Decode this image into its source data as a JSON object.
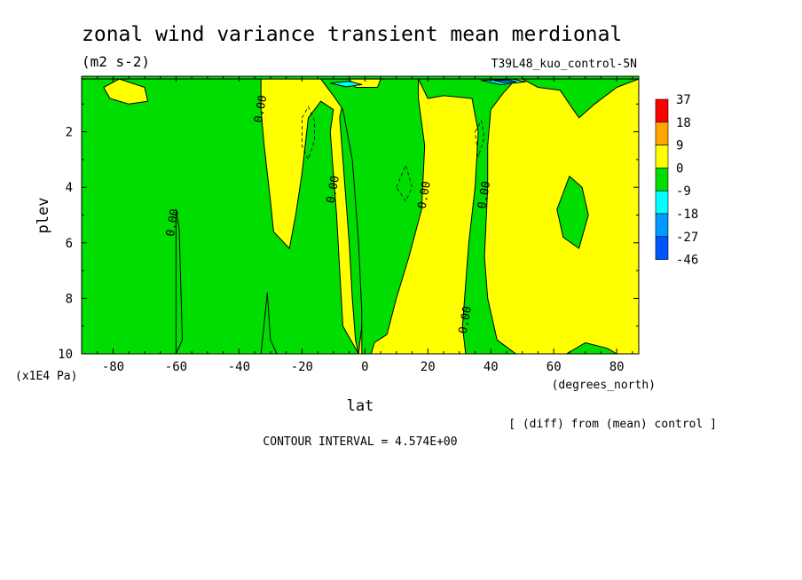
{
  "title": "zonal wind variance transient mean merdional",
  "units": "(m2 s-2)",
  "run_label": "T39L48_kuo_control-5N",
  "footnote": "[ (diff) from (mean) control ]",
  "contour_interval": "CONTOUR INTERVAL = 4.574E+00",
  "chart_data": {
    "type": "heatmap",
    "xlabel": "lat",
    "xunits": "(degrees_north)",
    "ylabel": "plev",
    "yunits": "(x1E4 Pa)",
    "xlim": [
      -90,
      87
    ],
    "ylim": [
      10,
      0
    ],
    "x_ticks": [
      -80,
      -60,
      -40,
      -20,
      0,
      20,
      40,
      60,
      80
    ],
    "y_ticks": [
      2,
      4,
      6,
      8,
      10
    ],
    "legend": {
      "labels": [
        "37",
        "18",
        "9",
        "0",
        "-9",
        "-18",
        "-27",
        "-46"
      ],
      "colors": [
        "#ff0000",
        "#ffa500",
        "#ffff00",
        "#00dd00",
        "#00ffff",
        "#0099ff",
        "#0055ff"
      ]
    },
    "contour_labels": [
      {
        "text": "0.00",
        "lat": -32,
        "plev": 1.2
      },
      {
        "text": "0.00",
        "lat": -60,
        "plev": 5.3
      },
      {
        "text": "0.00",
        "lat": -9,
        "plev": 4.1
      },
      {
        "text": "0.00",
        "lat": 20,
        "plev": 4.3
      },
      {
        "text": "0.00",
        "lat": 39,
        "plev": 4.3
      },
      {
        "text": "0.00",
        "lat": 33,
        "plev": 8.8
      }
    ],
    "regions": [
      {
        "value_class": "0 to 9",
        "color": "#ffff00",
        "polygon": [
          [
            -90,
            10
          ],
          [
            -90,
            0.1
          ],
          [
            87,
            0.1
          ],
          [
            87,
            10
          ]
        ]
      },
      {
        "value_class": "-9 to 0",
        "color": "#00dd00",
        "polygon": [
          [
            -90,
            0.1
          ],
          [
            -33,
            0.1
          ],
          [
            -33,
            1.2
          ],
          [
            -32,
            2.5
          ],
          [
            -30,
            4.5
          ],
          [
            -29,
            5.6
          ],
          [
            -24,
            6.2
          ],
          [
            -22,
            5
          ],
          [
            -20,
            3.5
          ],
          [
            -18,
            1.5
          ],
          [
            -14,
            0.9
          ],
          [
            -10,
            1.2
          ],
          [
            -11,
            2
          ],
          [
            -10,
            3.5
          ],
          [
            -9,
            5
          ],
          [
            -8,
            7
          ],
          [
            -7,
            9
          ],
          [
            -2,
            10
          ],
          [
            -90,
            10
          ]
        ]
      },
      {
        "value_class": "-9 to 0",
        "color": "#00dd00",
        "polygon": [
          [
            -2,
            10
          ],
          [
            -1,
            9
          ],
          [
            0,
            7
          ],
          [
            0,
            5
          ],
          [
            -1,
            3
          ],
          [
            -3,
            1.5
          ],
          [
            -7,
            0.9
          ],
          [
            -8,
            1.5
          ],
          [
            -7,
            3
          ],
          [
            -5,
            6
          ],
          [
            -4,
            8
          ],
          [
            -3,
            9.5
          ]
        ]
      },
      {
        "value_class": "-9 to 0",
        "color": "#00dd00",
        "polygon": [
          [
            -14,
            0.1
          ],
          [
            17,
            0.1
          ],
          [
            17,
            0.8
          ],
          [
            19,
            2.5
          ],
          [
            18,
            4.8
          ],
          [
            14,
            6.5
          ],
          [
            10,
            8
          ],
          [
            7,
            9.3
          ],
          [
            3,
            9.6
          ],
          [
            2,
            10
          ],
          [
            -1,
            10
          ],
          [
            -1,
            8.5
          ],
          [
            -2,
            6
          ],
          [
            -4,
            3
          ],
          [
            -7,
            1.2
          ],
          [
            -10,
            0.7
          ]
        ]
      },
      {
        "value_class": "-9 to 0",
        "color": "#00dd00",
        "polygon": [
          [
            17,
            0.1
          ],
          [
            48,
            0.1
          ],
          [
            44,
            0.6
          ],
          [
            40,
            1.2
          ],
          [
            39,
            2.5
          ],
          [
            39,
            4
          ],
          [
            38,
            6.5
          ],
          [
            39,
            8
          ],
          [
            42,
            9.5
          ],
          [
            48,
            10
          ],
          [
            32,
            10
          ],
          [
            31,
            9
          ],
          [
            33,
            6
          ],
          [
            35,
            4
          ],
          [
            36,
            2
          ],
          [
            34,
            0.8
          ],
          [
            25,
            0.7
          ],
          [
            20,
            0.8
          ]
        ]
      },
      {
        "value_class": "-9 to 0",
        "color": "#00dd00",
        "polygon": [
          [
            50,
            0.1
          ],
          [
            87,
            0.1
          ],
          [
            80,
            0.4
          ],
          [
            73,
            1
          ],
          [
            68,
            1.5
          ],
          [
            65,
            1
          ],
          [
            62,
            0.5
          ],
          [
            55,
            0.4
          ]
        ]
      },
      {
        "value_class": "-9 to 0",
        "color": "#00dd00",
        "polygon": [
          [
            -60,
            10
          ],
          [
            -60,
            4.8
          ],
          [
            -59,
            5.5
          ],
          [
            -58,
            9.5
          ]
        ]
      },
      {
        "value_class": "-9 to 0",
        "color": "#00dd00",
        "polygon": [
          [
            -33,
            10
          ],
          [
            -31,
            7.8
          ],
          [
            -30,
            9.5
          ],
          [
            -28,
            10
          ]
        ]
      },
      {
        "value_class": "-9 to 0",
        "color": "#00dd00",
        "polygon": [
          [
            61,
            4.8
          ],
          [
            65,
            3.6
          ],
          [
            69,
            4
          ],
          [
            71,
            5
          ],
          [
            68,
            6.2
          ],
          [
            63,
            5.8
          ]
        ]
      },
      {
        "value_class": "-9 to 0",
        "color": "#00dd00",
        "polygon": [
          [
            64,
            10
          ],
          [
            70,
            9.6
          ],
          [
            77,
            9.8
          ],
          [
            80,
            10
          ]
        ]
      },
      {
        "value_class": "0 to 9",
        "color": "#ffff00",
        "polygon": [
          [
            -83,
            0.4
          ],
          [
            -78,
            0.1
          ],
          [
            -70,
            0.4
          ],
          [
            -69,
            0.9
          ],
          [
            -75,
            1
          ],
          [
            -81,
            0.8
          ]
        ]
      },
      {
        "value_class": "0 to 9",
        "color": "#ffff00",
        "polygon": [
          [
            -5,
            0.1
          ],
          [
            5,
            0.1
          ],
          [
            4,
            0.4
          ],
          [
            -3,
            0.4
          ]
        ]
      },
      {
        "value_class": "-18 to -9",
        "color": "#00ffff",
        "polygon": [
          [
            -11,
            0.25
          ],
          [
            -5,
            0.18
          ],
          [
            -1,
            0.3
          ],
          [
            -6,
            0.38
          ]
        ]
      },
      {
        "value_class": "-18 to -9",
        "color": "#00ffff",
        "polygon": [
          [
            37,
            0.15
          ],
          [
            47,
            0.1
          ],
          [
            51,
            0.2
          ],
          [
            43,
            0.3
          ]
        ]
      },
      {
        "value_class": "-27 to -18",
        "color": "#0099ff",
        "polygon": [
          [
            41,
            0.16
          ],
          [
            46,
            0.13
          ],
          [
            48,
            0.2
          ],
          [
            44,
            0.22
          ]
        ]
      }
    ],
    "dashed_contours": [
      [
        [
          -20,
          1.5
        ],
        [
          -18,
          1.1
        ],
        [
          -16,
          1.6
        ],
        [
          -16,
          2.3
        ],
        [
          -18,
          3
        ],
        [
          -20,
          2.5
        ]
      ],
      [
        [
          10,
          4
        ],
        [
          13,
          3.2
        ],
        [
          15,
          4
        ],
        [
          13,
          4.5
        ]
      ],
      [
        [
          35,
          2
        ],
        [
          37,
          1.6
        ],
        [
          38,
          2.2
        ],
        [
          36,
          2.9
        ]
      ]
    ]
  }
}
